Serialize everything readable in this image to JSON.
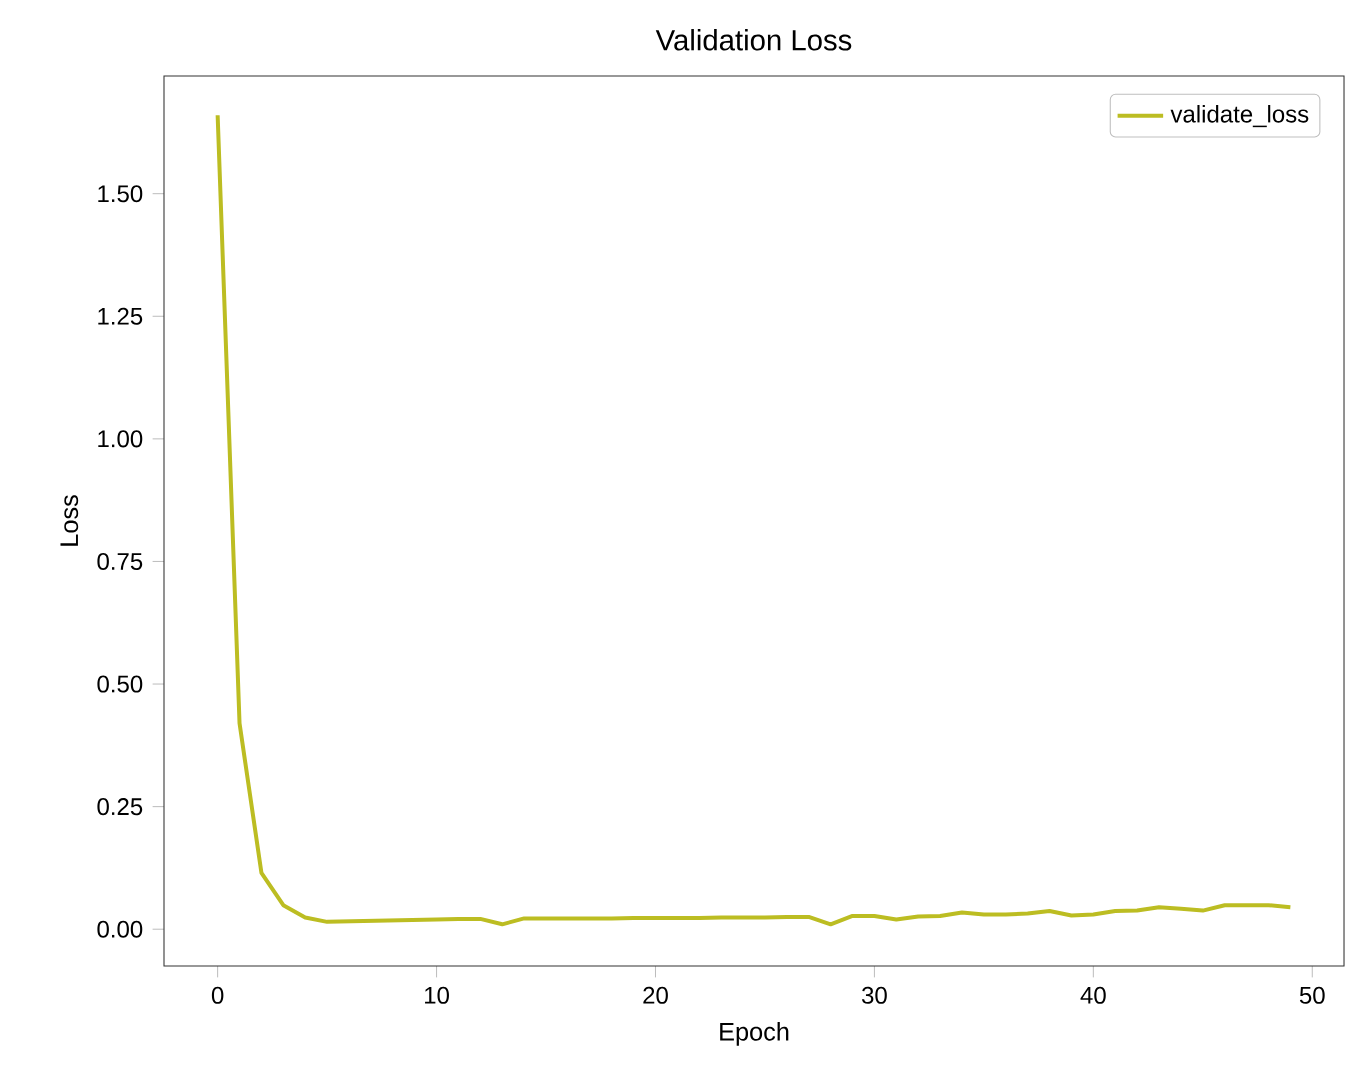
{
  "chart_data": {
    "type": "line",
    "title": "Validation Loss",
    "xlabel": "Epoch",
    "ylabel": "Loss",
    "x": [
      0,
      1,
      2,
      3,
      4,
      5,
      6,
      7,
      8,
      9,
      10,
      11,
      12,
      13,
      14,
      15,
      16,
      17,
      18,
      19,
      20,
      21,
      22,
      23,
      24,
      25,
      26,
      27,
      28,
      29,
      30,
      31,
      32,
      33,
      34,
      35,
      36,
      37,
      38,
      39,
      40,
      41,
      42,
      43,
      44,
      45,
      46,
      47,
      48,
      49
    ],
    "series": [
      {
        "name": "validate_loss",
        "color": "#bcbd22",
        "values": [
          1.66,
          0.42,
          0.115,
          0.049,
          0.024,
          0.015,
          0.016,
          0.017,
          0.018,
          0.019,
          0.02,
          0.021,
          0.021,
          0.01,
          0.022,
          0.022,
          0.022,
          0.022,
          0.022,
          0.023,
          0.023,
          0.023,
          0.023,
          0.024,
          0.024,
          0.024,
          0.025,
          0.025,
          0.01,
          0.027,
          0.027,
          0.02,
          0.026,
          0.027,
          0.034,
          0.03,
          0.03,
          0.032,
          0.037,
          0.028,
          0.03,
          0.037,
          0.038,
          0.045,
          0.042,
          0.038,
          0.049,
          0.049,
          0.049,
          0.045
        ]
      }
    ],
    "xlim": [
      -2.45,
      51.45
    ],
    "ylim": [
      -0.075,
      1.74
    ],
    "xticks": [
      0,
      10,
      20,
      30,
      40,
      50
    ],
    "yticks": [
      {
        "value": 0,
        "label": "0.00"
      },
      {
        "value": 0.25,
        "label": "0.25"
      },
      {
        "value": 0.5,
        "label": "0.50"
      },
      {
        "value": 0.75,
        "label": "0.75"
      },
      {
        "value": 1.0,
        "label": "1.00"
      },
      {
        "value": 1.25,
        "label": "1.25"
      },
      {
        "value": 1.5,
        "label": "1.50"
      }
    ],
    "legend": "top right",
    "line_style": "solid",
    "grid": false
  }
}
